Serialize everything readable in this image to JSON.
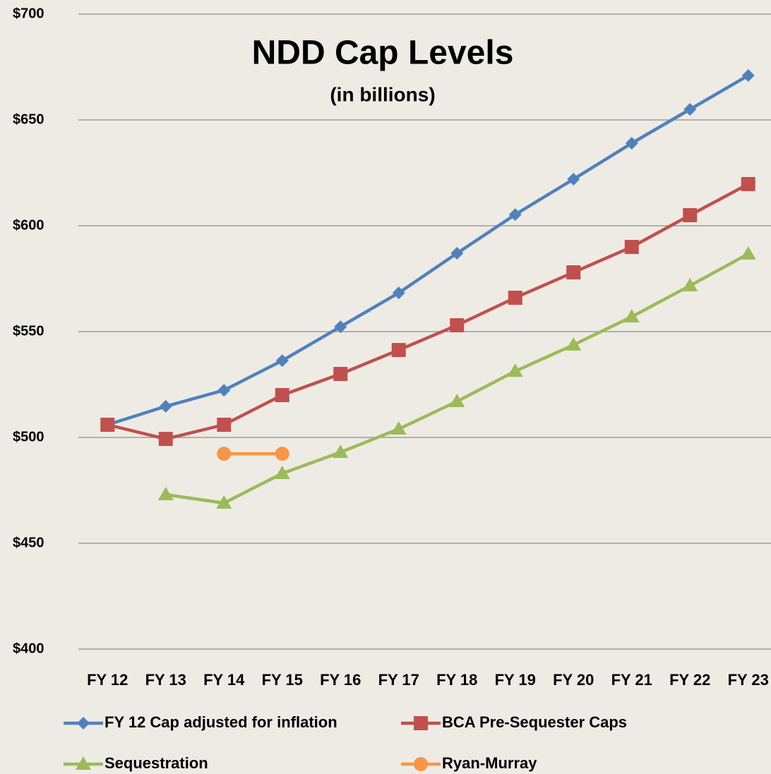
{
  "chart_data": {
    "type": "line",
    "title": "NDD Cap Levels",
    "subtitle": "(in billions)",
    "categories": [
      "FY 12",
      "FY 13",
      "FY 14",
      "FY 15",
      "FY 16",
      "FY 17",
      "FY 18",
      "FY 19",
      "FY 20",
      "FY 21",
      "FY 22",
      "FY 23"
    ],
    "series": [
      {
        "name": "FY 12 Cap adjusted for inflation",
        "color": "#4f81bd",
        "marker": "diamond",
        "values": [
          506,
          514.7,
          522.3,
          536.3,
          552.3,
          568.3,
          587,
          605.3,
          622,
          639,
          655,
          671
        ]
      },
      {
        "name": "BCA Pre-Sequester Caps",
        "color": "#c0504d",
        "marker": "square",
        "values": [
          506,
          499.3,
          506,
          520,
          530,
          541.3,
          553,
          566,
          578,
          590,
          605,
          619.7
        ]
      },
      {
        "name": "Sequestration",
        "color": "#9bbb59",
        "marker": "triangle",
        "values": [
          null,
          473,
          469,
          483,
          493,
          504,
          517,
          531.3,
          543.7,
          557,
          571.7,
          586.7
        ]
      },
      {
        "name": "Ryan-Murray",
        "color": "#f79646",
        "marker": "circle",
        "values": [
          null,
          null,
          492.3,
          492.3,
          null,
          null,
          null,
          null,
          null,
          null,
          null,
          null
        ]
      }
    ],
    "ylim": [
      400,
      700
    ],
    "yticks": [
      {
        "value": 400,
        "label": "$400"
      },
      {
        "value": 450,
        "label": "$450"
      },
      {
        "value": 500,
        "label": "$500"
      },
      {
        "value": 550,
        "label": "$550"
      },
      {
        "value": 600,
        "label": "$600"
      },
      {
        "value": 650,
        "label": "$650"
      },
      {
        "value": 700,
        "label": "$700"
      }
    ],
    "grid": true,
    "legend": "bottom"
  }
}
